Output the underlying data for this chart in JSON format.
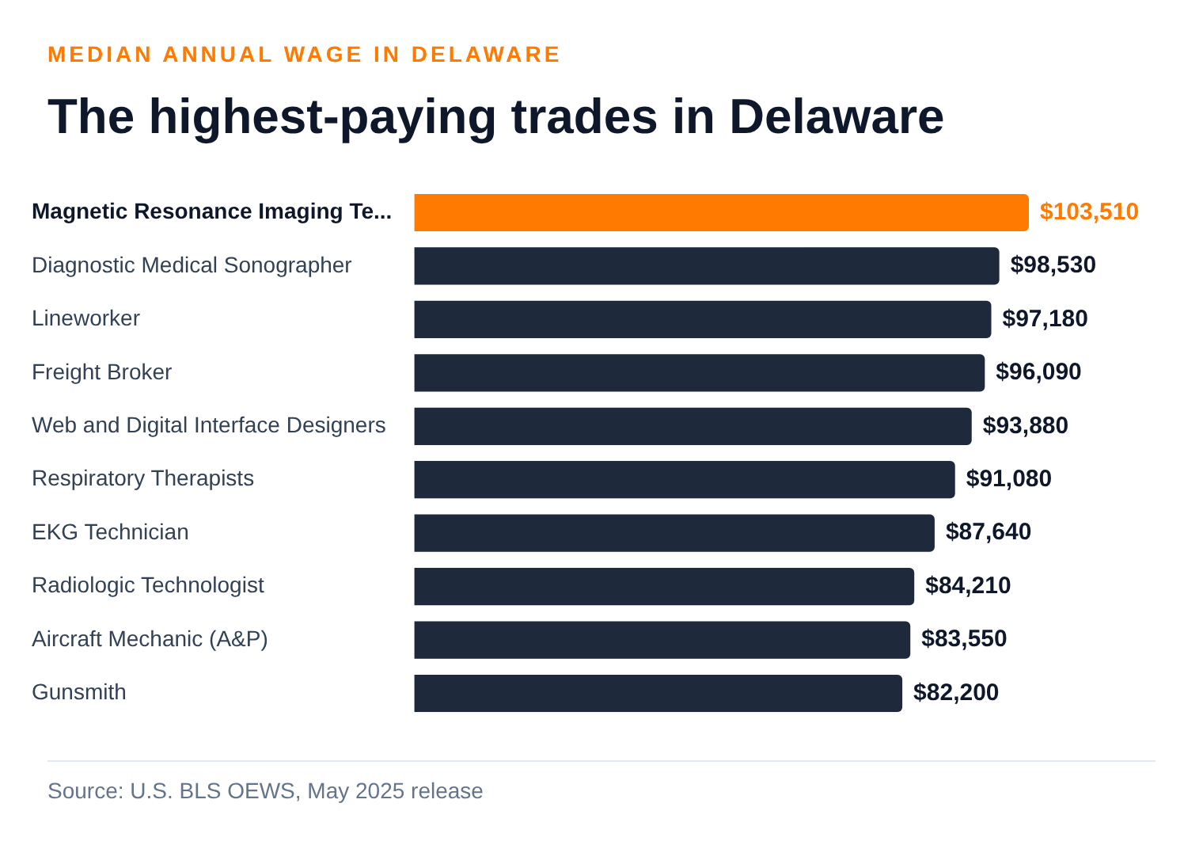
{
  "chart_data": {
    "type": "bar",
    "orientation": "horizontal",
    "subtitle": "MEDIAN ANNUAL WAGE IN DELAWARE",
    "title": "The highest-paying trades in Delaware",
    "categories": [
      "Magnetic Resonance Imaging Te...",
      "Diagnostic Medical Sonographer",
      "Lineworker",
      "Freight Broker",
      "Web and Digital Interface Designers",
      "Respiratory Therapists",
      "EKG Technician",
      "Radiologic Technologist",
      "Aircraft Mechanic (A&P)",
      "Gunsmith"
    ],
    "values": [
      103510,
      98530,
      97180,
      96090,
      93880,
      91080,
      87640,
      84210,
      83550,
      82200
    ],
    "value_labels": [
      "$103,510",
      "$98,530",
      "$97,180",
      "$96,090",
      "$93,880",
      "$91,080",
      "$87,640",
      "$84,210",
      "$83,550",
      "$82,200"
    ],
    "colors": [
      "#ff7a00",
      "#1e293b",
      "#1e293b",
      "#1e293b",
      "#1e293b",
      "#1e293b",
      "#1e293b",
      "#1e293b",
      "#1e293b",
      "#1e293b"
    ],
    "legend": false,
    "annotations": [
      "Source: U.S. BLS OEWS, May 2025 release"
    ]
  }
}
